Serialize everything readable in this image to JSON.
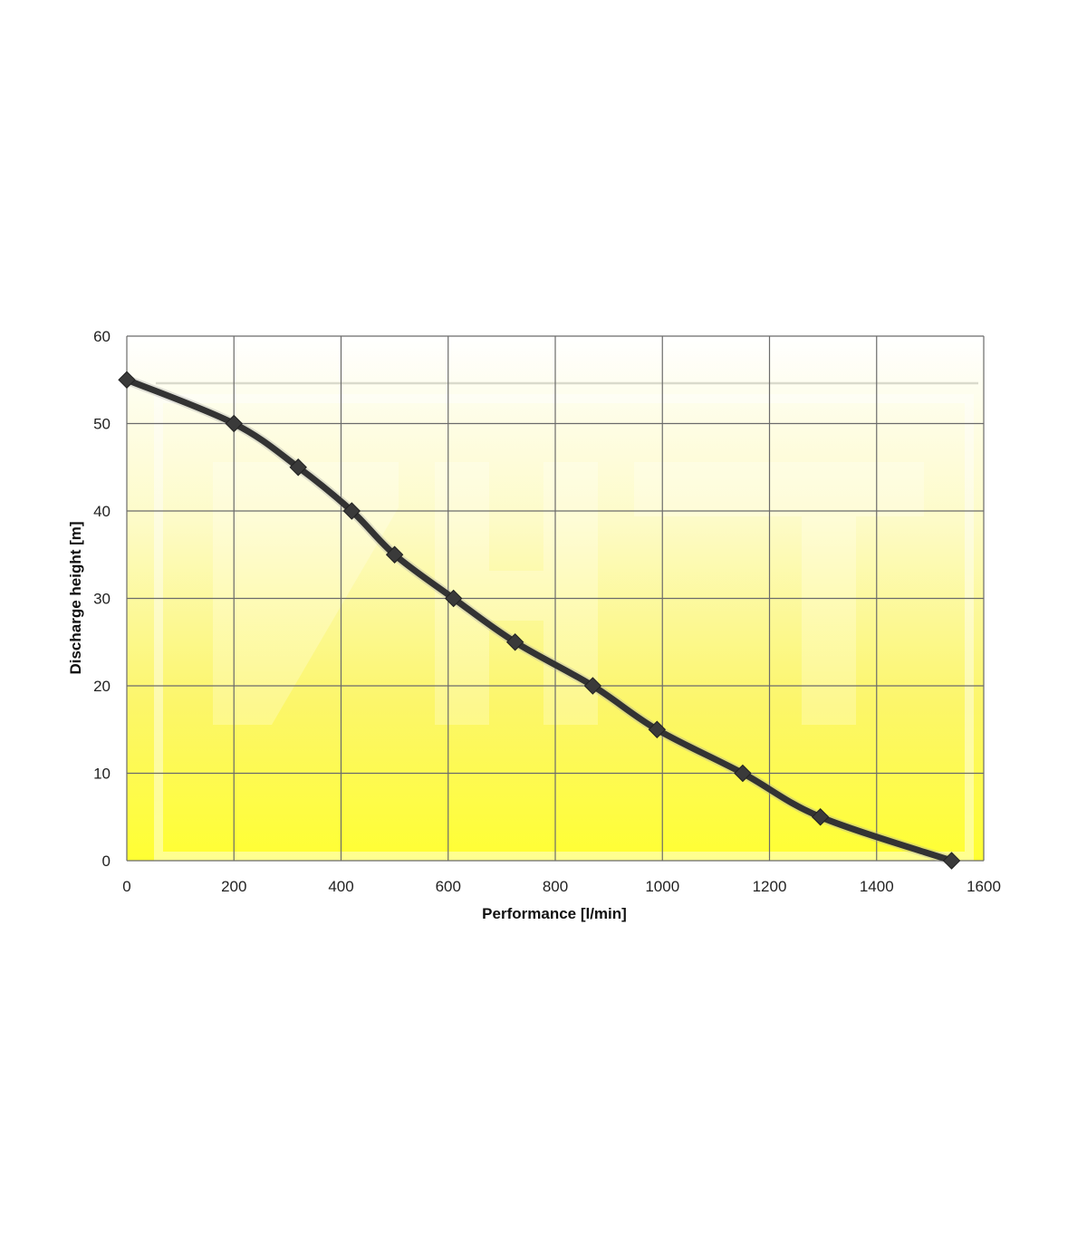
{
  "chart_data": {
    "type": "line",
    "title": "",
    "xlabel": "Performance [l/min]",
    "ylabel": "Discharge height [m]",
    "xlim": [
      0,
      1600
    ],
    "ylim": [
      0,
      60
    ],
    "x_ticks": [
      "0",
      "200",
      "400",
      "600",
      "800",
      "1000",
      "1200",
      "1400",
      "1600"
    ],
    "y_ticks": [
      "0",
      "10",
      "20",
      "30",
      "40",
      "50",
      "60"
    ],
    "grid": true,
    "legend": "none",
    "series": [
      {
        "color": "#333333",
        "marker": "diamond",
        "x": [
          0,
          200,
          320,
          420,
          500,
          610,
          725,
          870,
          990,
          1150,
          1295,
          1540
        ],
        "y": [
          55,
          50,
          45,
          40,
          35,
          30,
          25,
          20,
          15,
          10,
          5,
          0
        ]
      }
    ],
    "background_gradient": [
      "#ffffff",
      "#ffff33"
    ],
    "watermark": "ZHT"
  }
}
